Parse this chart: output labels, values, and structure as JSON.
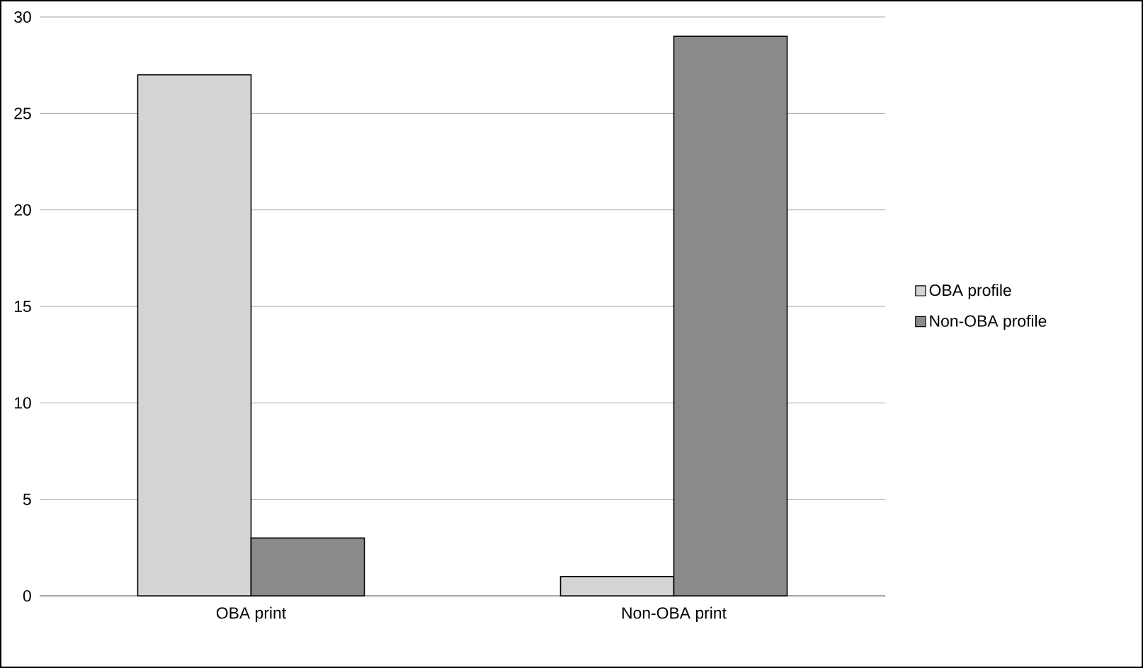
{
  "chart_data": {
    "type": "bar",
    "categories": [
      "OBA print",
      "Non-OBA print"
    ],
    "series": [
      {
        "name": "OBA profile",
        "color": "#d4d4d4",
        "values": [
          27,
          1
        ]
      },
      {
        "name": "Non-OBA profile",
        "color": "#8a8a8a",
        "values": [
          3,
          29
        ]
      }
    ],
    "ylim": [
      0,
      30
    ],
    "yticks": [
      0,
      5,
      10,
      15,
      20,
      25,
      30
    ],
    "grid": "y",
    "legend": "right"
  }
}
